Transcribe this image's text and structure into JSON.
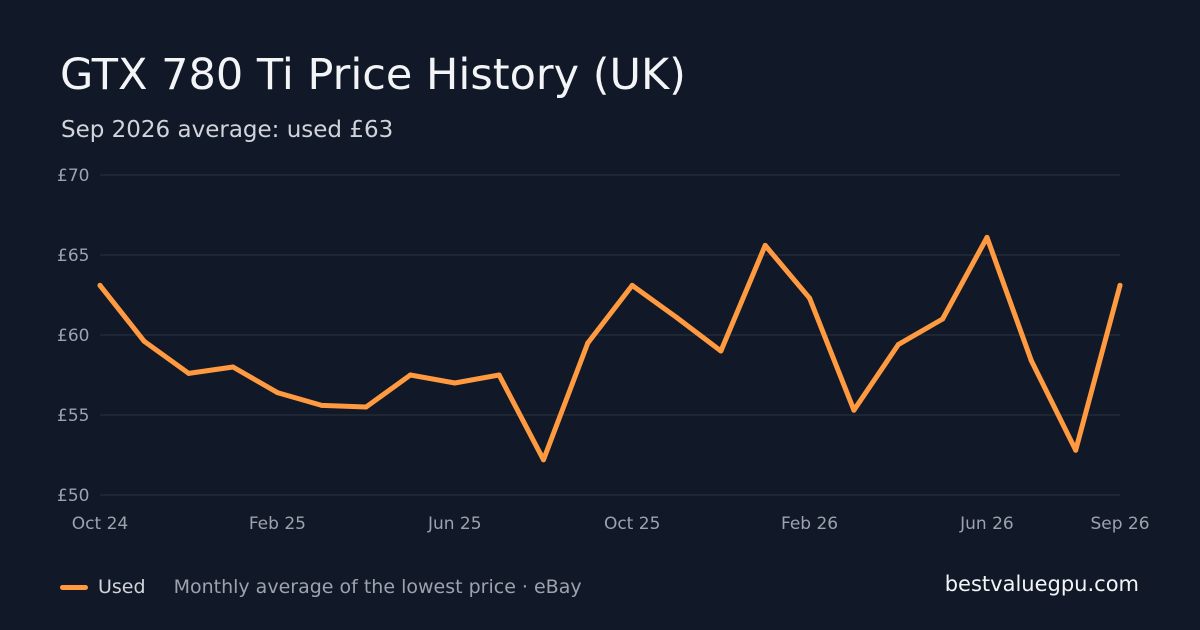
{
  "header": {
    "title": "GTX 780 Ti Price History (UK)",
    "subtitle": "Sep 2026 average: used £63"
  },
  "footer": {
    "legend_label": "Used",
    "note": "Monthly average of the lowest price · eBay",
    "brand": "bestvaluegpu.com"
  },
  "colors": {
    "background": "#111827",
    "line": "#ff9a40",
    "grid": "#2a3342"
  },
  "chart_data": {
    "type": "line",
    "title": "GTX 780 Ti Price History (UK)",
    "subtitle": "Sep 2026 average: used £63",
    "xlabel": "",
    "ylabel": "",
    "ylim": [
      50,
      70
    ],
    "y_ticks": [
      50,
      55,
      60,
      65,
      70
    ],
    "y_tick_labels": [
      "£50",
      "£55",
      "£60",
      "£65",
      "£70"
    ],
    "grid": true,
    "legend_position": "bottom-left",
    "x": [
      "2024-10",
      "2024-11",
      "2024-12",
      "2025-01",
      "2025-02",
      "2025-03",
      "2025-04",
      "2025-05",
      "2025-06",
      "2025-07",
      "2025-08",
      "2025-09",
      "2025-10",
      "2025-11",
      "2025-12",
      "2026-01",
      "2026-02",
      "2026-03",
      "2026-04",
      "2026-05",
      "2026-06",
      "2026-07",
      "2026-08",
      "2026-09"
    ],
    "x_tick_labels": [
      {
        "x": "2024-10",
        "label": "Oct 24"
      },
      {
        "x": "2025-02",
        "label": "Feb 25"
      },
      {
        "x": "2025-06",
        "label": "Jun 25"
      },
      {
        "x": "2025-10",
        "label": "Oct 25"
      },
      {
        "x": "2026-02",
        "label": "Feb 26"
      },
      {
        "x": "2026-06",
        "label": "Jun 26"
      },
      {
        "x": "2026-09",
        "label": "Sep 26"
      }
    ],
    "series": [
      {
        "name": "Used",
        "values": [
          63.1,
          59.6,
          57.6,
          58.0,
          56.4,
          55.6,
          55.5,
          57.5,
          57.0,
          57.5,
          52.2,
          59.5,
          63.1,
          61.1,
          59.0,
          65.6,
          62.3,
          55.3,
          59.4,
          61.0,
          66.1,
          58.4,
          52.8,
          63.1
        ]
      }
    ]
  }
}
